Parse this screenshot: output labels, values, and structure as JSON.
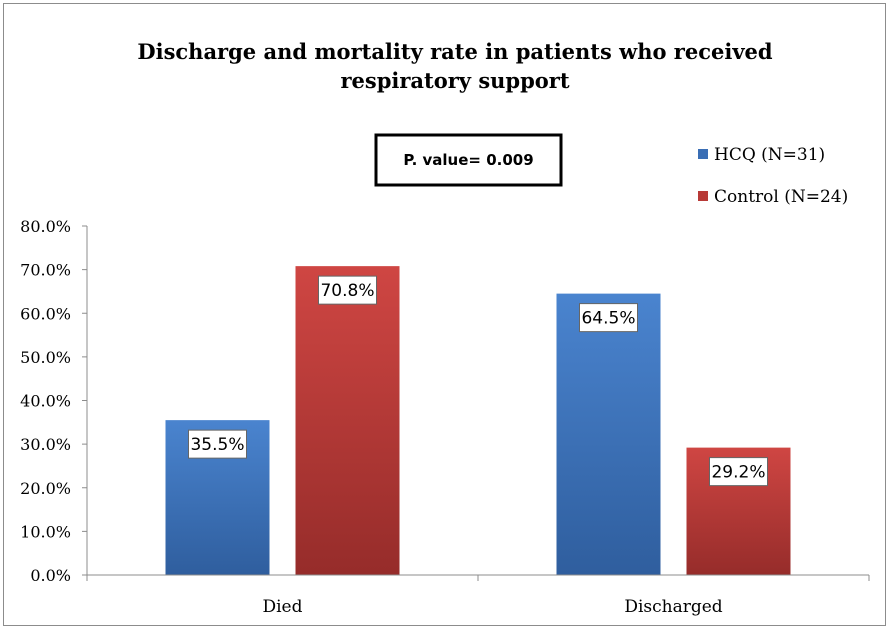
{
  "chart_data": {
    "type": "bar",
    "title": "Discharge and mortality rate in patients who received respiratory support",
    "title_lines": [
      "Discharge and mortality rate in patients who received",
      "respiratory support"
    ],
    "annotation": "P. value= 0.009",
    "categories": [
      "Died",
      "Discharged"
    ],
    "series": [
      {
        "name": "HCQ (N=31)",
        "values": [
          35.5,
          64.5
        ],
        "color": "#3a6eb5"
      },
      {
        "name": "Control (N=24)",
        "values": [
          70.8,
          29.2
        ],
        "color": "#b83a37"
      }
    ],
    "data_labels": [
      [
        "35.5%",
        "64.5%"
      ],
      [
        "70.8%",
        "29.2%"
      ]
    ],
    "ylim": [
      0,
      80
    ],
    "yticks": [
      "0.0%",
      "10.0%",
      "20.0%",
      "30.0%",
      "40.0%",
      "50.0%",
      "60.0%",
      "70.0%",
      "80.0%"
    ],
    "xlabel": "",
    "ylabel": "",
    "legend_position": "top-right",
    "grid": false
  }
}
